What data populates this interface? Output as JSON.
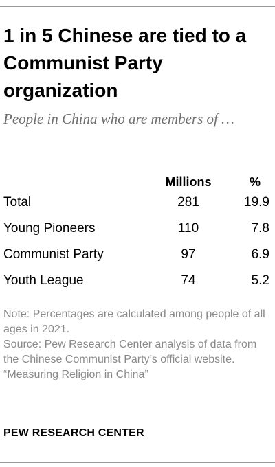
{
  "title": "1 in 5 Chinese are tied to a Communist Party organization",
  "subtitle": "People in China who are members of …",
  "chart_data": {
    "type": "table",
    "columns": [
      "",
      "Millions",
      "%"
    ],
    "rows": [
      {
        "label": "Total",
        "millions": "281",
        "percent": "19.9"
      },
      {
        "label": "Young Pioneers",
        "millions": "110",
        "percent": "7.8"
      },
      {
        "label": "Communist Party",
        "millions": "97",
        "percent": "6.9"
      },
      {
        "label": "Youth League",
        "millions": "74",
        "percent": "5.2"
      }
    ]
  },
  "notes": {
    "note": "Note: Percentages are calculated among people of all ages in 2021.",
    "source": "Source: Pew Research Center analysis of data from the Chinese Communist Party’s official website.",
    "report": "“Measuring Religion in China”"
  },
  "brand": "PEW RESEARCH CENTER",
  "colors": {
    "text": "#000000",
    "subtitle": "#6f6f6f",
    "note": "#8a8a8a",
    "rule": "#9a9a9a"
  }
}
